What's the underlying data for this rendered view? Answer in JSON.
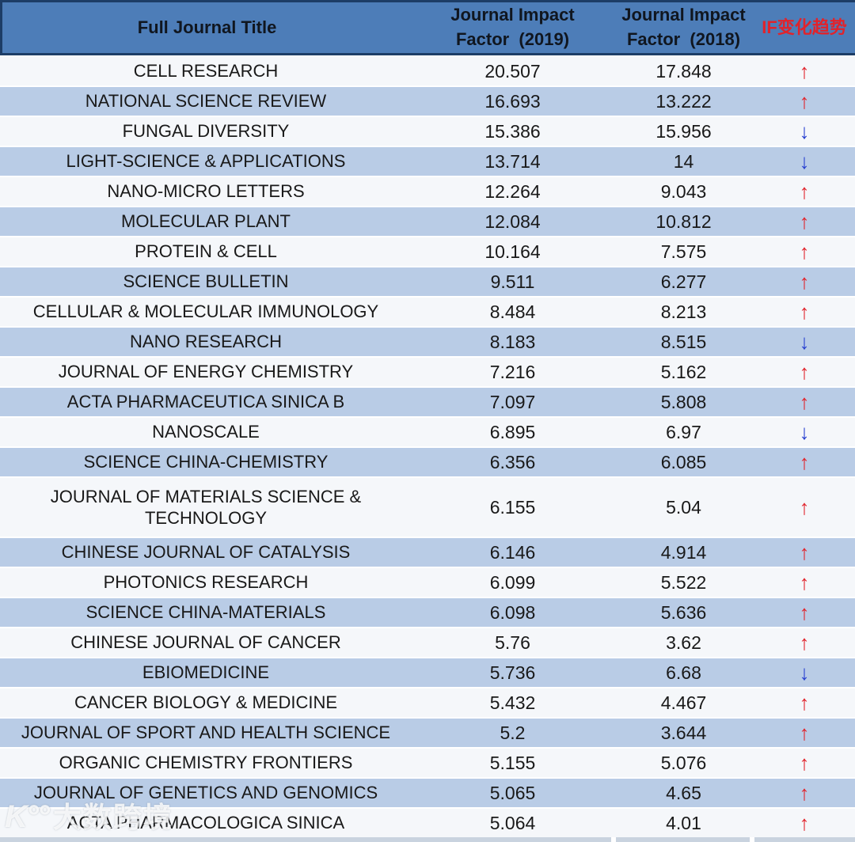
{
  "table": {
    "headers": {
      "title": "Full Journal Title",
      "if2019_line1": "Journal Impact",
      "if2019_line2": "Factor  (2019)",
      "if2018_line1": "Journal Impact",
      "if2018_line2": "Factor  (2018)",
      "trend": "IF变化趋势"
    },
    "rows": [
      {
        "title": "CELL RESEARCH",
        "if2019": "20.507",
        "if2018": "17.848",
        "trend": "up"
      },
      {
        "title": "NATIONAL SCIENCE REVIEW",
        "if2019": "16.693",
        "if2018": "13.222",
        "trend": "up"
      },
      {
        "title": "FUNGAL DIVERSITY",
        "if2019": "15.386",
        "if2018": "15.956",
        "trend": "down"
      },
      {
        "title": "LIGHT-SCIENCE & APPLICATIONS",
        "if2019": "13.714",
        "if2018": "14",
        "trend": "down"
      },
      {
        "title": "NANO-MICRO LETTERS",
        "if2019": "12.264",
        "if2018": "9.043",
        "trend": "up"
      },
      {
        "title": "MOLECULAR PLANT",
        "if2019": "12.084",
        "if2018": "10.812",
        "trend": "up"
      },
      {
        "title": "PROTEIN & CELL",
        "if2019": "10.164",
        "if2018": "7.575",
        "trend": "up"
      },
      {
        "title": "SCIENCE BULLETIN",
        "if2019": "9.511",
        "if2018": "6.277",
        "trend": "up"
      },
      {
        "title": "CELLULAR & MOLECULAR IMMUNOLOGY",
        "if2019": "8.484",
        "if2018": "8.213",
        "trend": "up"
      },
      {
        "title": "NANO RESEARCH",
        "if2019": "8.183",
        "if2018": "8.515",
        "trend": "down"
      },
      {
        "title": "JOURNAL OF ENERGY CHEMISTRY",
        "if2019": "7.216",
        "if2018": "5.162",
        "trend": "up"
      },
      {
        "title": "ACTA PHARMACEUTICA SINICA B",
        "if2019": "7.097",
        "if2018": "5.808",
        "trend": "up"
      },
      {
        "title": "NANOSCALE",
        "if2019": "6.895",
        "if2018": "6.97",
        "trend": "down"
      },
      {
        "title": "SCIENCE CHINA-CHEMISTRY",
        "if2019": "6.356",
        "if2018": "6.085",
        "trend": "up"
      },
      {
        "title": "JOURNAL OF MATERIALS SCIENCE &\nTECHNOLOGY",
        "if2019": "6.155",
        "if2018": "5.04",
        "trend": "up"
      },
      {
        "title": "CHINESE JOURNAL OF CATALYSIS",
        "if2019": "6.146",
        "if2018": "4.914",
        "trend": "up"
      },
      {
        "title": "PHOTONICS RESEARCH",
        "if2019": "6.099",
        "if2018": "5.522",
        "trend": "up"
      },
      {
        "title": "SCIENCE CHINA-MATERIALS",
        "if2019": "6.098",
        "if2018": "5.636",
        "trend": "up"
      },
      {
        "title": "CHINESE JOURNAL OF CANCER",
        "if2019": "5.76",
        "if2018": "3.62",
        "trend": "up"
      },
      {
        "title": "EBIOMEDICINE",
        "if2019": "5.736",
        "if2018": "6.68",
        "trend": "down"
      },
      {
        "title": "CANCER BIOLOGY & MEDICINE",
        "if2019": "5.432",
        "if2018": "4.467",
        "trend": "up"
      },
      {
        "title": "JOURNAL OF SPORT AND HEALTH SCIENCE",
        "if2019": "5.2",
        "if2018": "3.644",
        "trend": "up"
      },
      {
        "title": "ORGANIC CHEMISTRY FRONTIERS",
        "if2019": "5.155",
        "if2018": "5.076",
        "trend": "up"
      },
      {
        "title": "JOURNAL OF GENETICS AND GENOMICS",
        "if2019": "5.065",
        "if2018": "4.65",
        "trend": "up"
      },
      {
        "title": "ACTA PHARMACOLOGICA SINICA",
        "if2019": "5.064",
        "if2018": "4.01",
        "trend": "up"
      }
    ]
  },
  "icons": {
    "up_arrow": "↑",
    "down_arrow": "↓"
  },
  "colors": {
    "header_bg": "#4d7db8",
    "header_border": "#1d3d66",
    "row_blue": "#b9cce6",
    "row_white": "#f5f7fa",
    "trend_up_red": "#e1232b",
    "trend_down_blue": "#2840d0",
    "trend_header_red": "#e1232b"
  },
  "watermark": {
    "logo": "K°°",
    "text": "大数跨境"
  }
}
